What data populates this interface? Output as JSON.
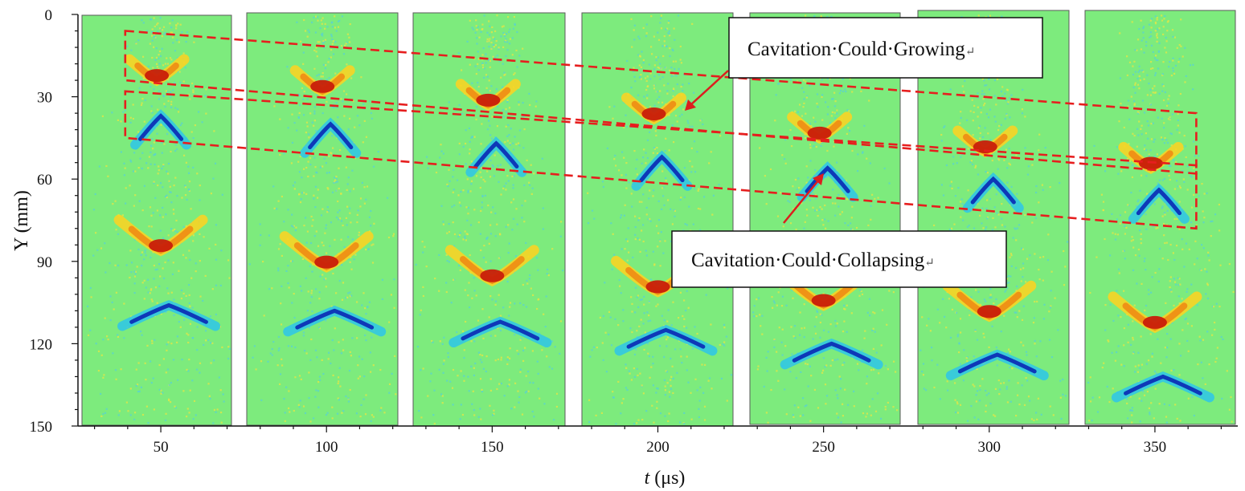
{
  "chart_data": {
    "type": "heatmap",
    "title": "",
    "xlabel": {
      "symbol": "t",
      "unit": " (μs)"
    },
    "ylabel": "Y (mm)",
    "x_ticks": [
      50,
      100,
      150,
      200,
      250,
      300,
      350
    ],
    "y_ticks": [
      0,
      30,
      60,
      90,
      120,
      150
    ],
    "ylim": [
      0,
      150
    ],
    "panels": [
      {
        "t": 50,
        "features": [
          {
            "kind": "growth",
            "y": 24
          },
          {
            "kind": "collapse",
            "y": 37
          },
          {
            "kind": "growth",
            "y": 86
          },
          {
            "kind": "collapse",
            "y": 106
          }
        ]
      },
      {
        "t": 100,
        "features": [
          {
            "kind": "growth",
            "y": 28
          },
          {
            "kind": "collapse",
            "y": 40
          },
          {
            "kind": "growth",
            "y": 92
          },
          {
            "kind": "collapse",
            "y": 108
          }
        ]
      },
      {
        "t": 150,
        "features": [
          {
            "kind": "growth",
            "y": 33
          },
          {
            "kind": "collapse",
            "y": 47
          },
          {
            "kind": "growth",
            "y": 97
          },
          {
            "kind": "collapse",
            "y": 112
          }
        ]
      },
      {
        "t": 200,
        "features": [
          {
            "kind": "growth",
            "y": 38
          },
          {
            "kind": "collapse",
            "y": 52
          },
          {
            "kind": "growth",
            "y": 101
          },
          {
            "kind": "collapse",
            "y": 115
          }
        ]
      },
      {
        "t": 250,
        "features": [
          {
            "kind": "growth",
            "y": 45
          },
          {
            "kind": "collapse",
            "y": 56
          },
          {
            "kind": "growth",
            "y": 106
          },
          {
            "kind": "collapse",
            "y": 120
          }
        ]
      },
      {
        "t": 300,
        "features": [
          {
            "kind": "growth",
            "y": 50
          },
          {
            "kind": "collapse",
            "y": 60
          },
          {
            "kind": "growth",
            "y": 110
          },
          {
            "kind": "collapse",
            "y": 124
          }
        ]
      },
      {
        "t": 350,
        "features": [
          {
            "kind": "growth",
            "y": 56
          },
          {
            "kind": "collapse",
            "y": 64
          },
          {
            "kind": "growth",
            "y": 114
          },
          {
            "kind": "collapse",
            "y": 132
          }
        ]
      }
    ],
    "bands": [
      {
        "name": "growing-band",
        "t": [
          40,
          362
        ],
        "y_top": [
          6,
          36
        ],
        "y_bottom": [
          24,
          58
        ]
      },
      {
        "name": "collapsing-band",
        "t": [
          40,
          362
        ],
        "y_top": [
          28,
          55
        ],
        "y_bottom": [
          45,
          78
        ]
      }
    ],
    "annotations": [
      {
        "text": "Cavitation·Could·Growing",
        "mark": "↵"
      },
      {
        "text": "Cavitation·Could·Collapsing",
        "mark": "↵"
      }
    ]
  },
  "colors": {
    "background_field": "#7deb7d",
    "growth_core": "#c81e0a",
    "growth_edge": "#ffd21e",
    "collapse_core": "#0a28b4",
    "collapse_edge": "#28c3f0",
    "band_line": "#e61e1e",
    "arrow": "#dc1e1e"
  }
}
